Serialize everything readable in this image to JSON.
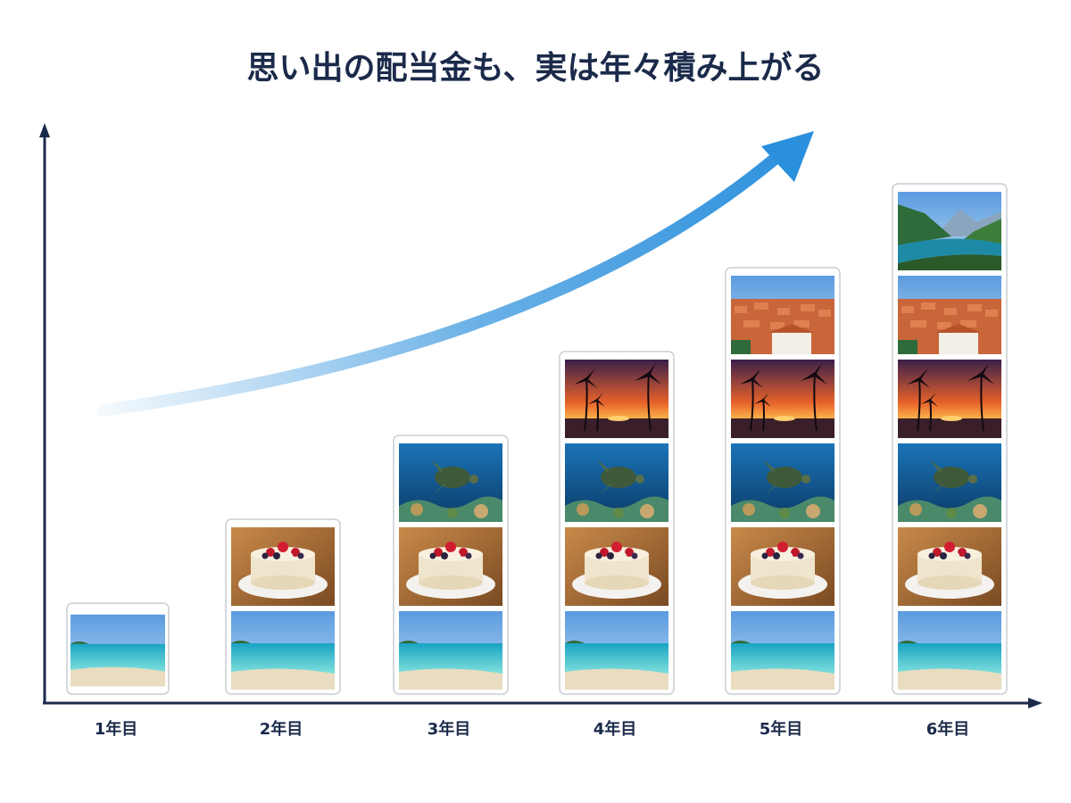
{
  "title": "思い出の配当金も、実は年々積み上がる",
  "columns": [
    {
      "label": "1年目"
    },
    {
      "label": "2年目"
    },
    {
      "label": "3年目"
    },
    {
      "label": "4年目"
    },
    {
      "label": "5年目"
    },
    {
      "label": "6年目"
    }
  ]
}
